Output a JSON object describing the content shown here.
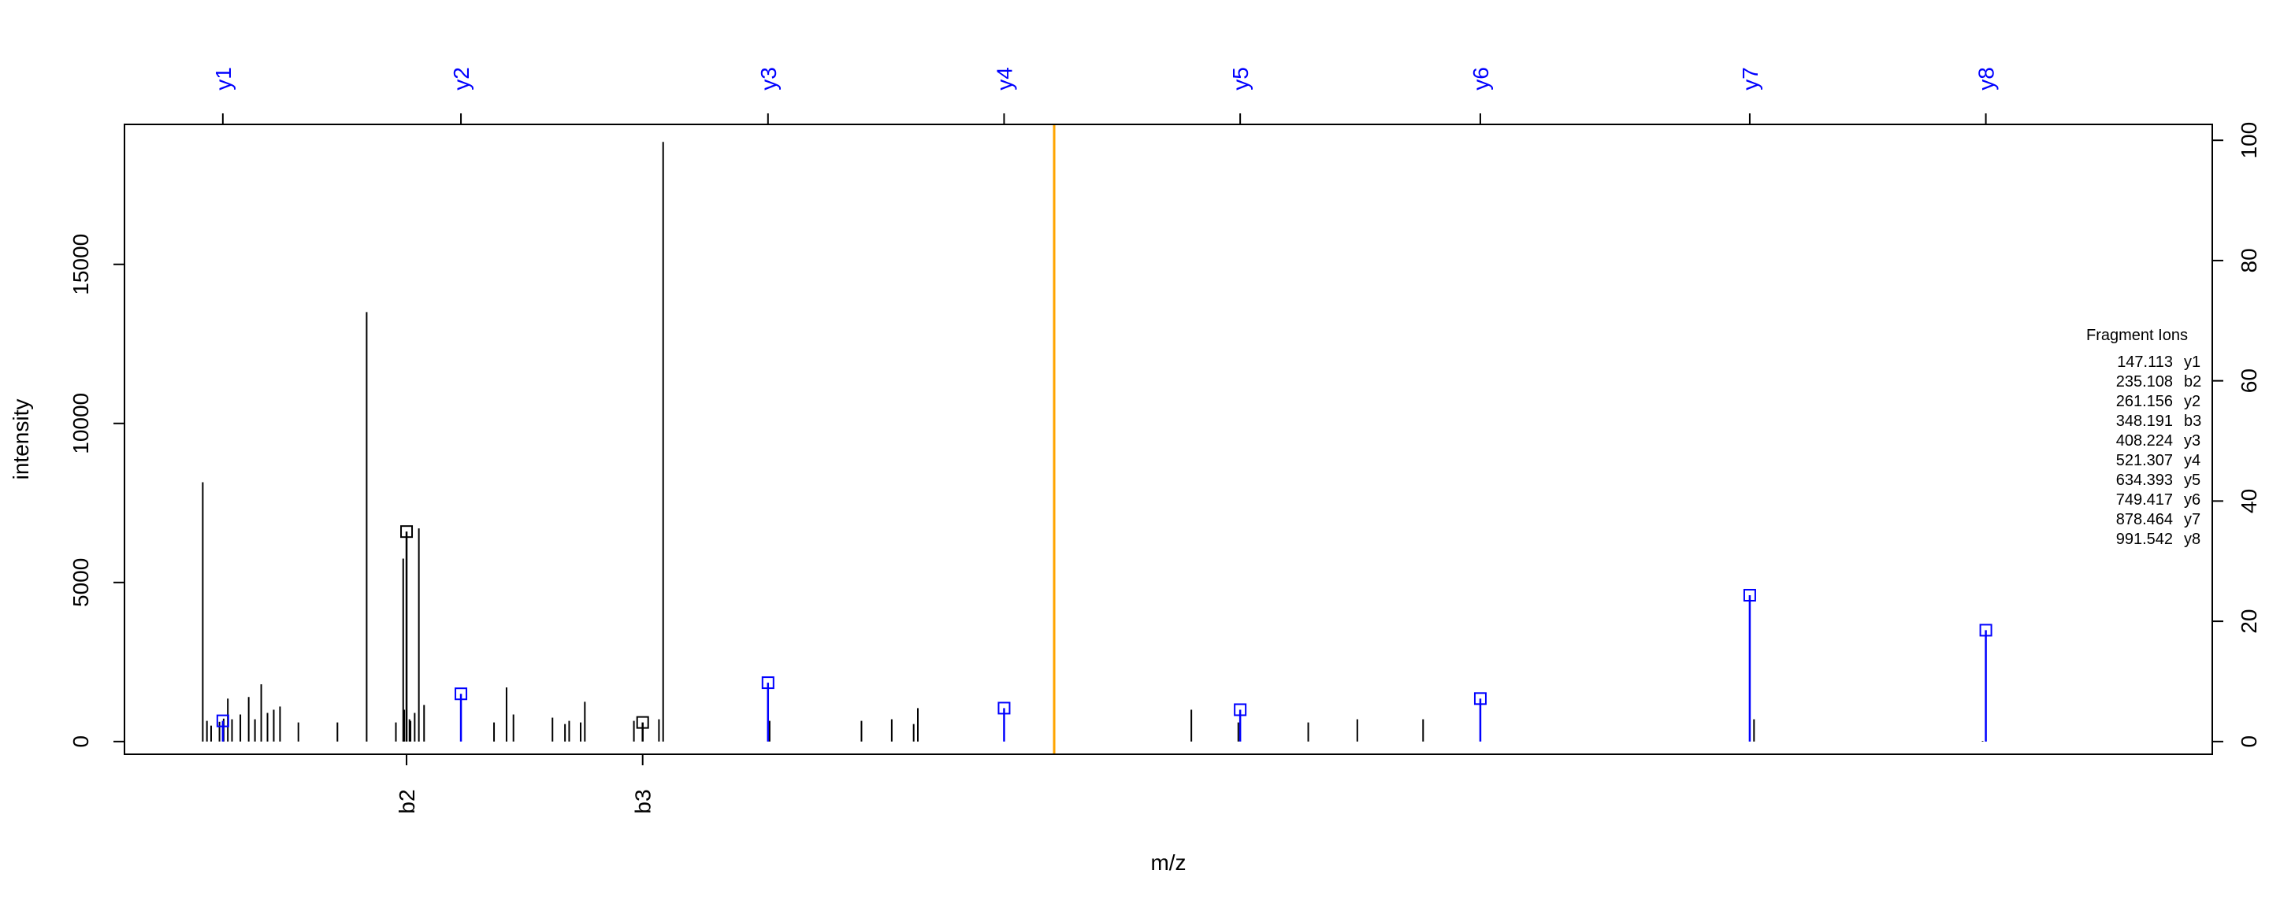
{
  "chart_data": {
    "type": "bar",
    "title": "",
    "xlabel": "m/z",
    "ylabel": "intensity",
    "xlim": [
      100,
      1100
    ],
    "ylim": [
      -400,
      19400
    ],
    "y_ticks": [
      0,
      5000,
      10000,
      15000
    ],
    "y_right_ticks": [
      0,
      20,
      40,
      60,
      80,
      100
    ],
    "y_right_max_intensity": 18900,
    "grid": false,
    "precursor_mz": 545.3,
    "colors": {
      "precursor": "#ffa500",
      "y_ions": "#0000ff",
      "b_ions": "#000000",
      "peaks": "#000000"
    },
    "peaks": {
      "mz": [
        137.5,
        139.5,
        141.5,
        145.5,
        147.5,
        149.5,
        151.5,
        155.5,
        159.5,
        162.5,
        165.5,
        168.5,
        171.5,
        174.5,
        183.3,
        202,
        216,
        230,
        233.5,
        237,
        234,
        236.5,
        239,
        241,
        243.5,
        277,
        283,
        286.3,
        305,
        311,
        313,
        318.5,
        320.5,
        344,
        356,
        358,
        409,
        453,
        467.5,
        478,
        480,
        545.3,
        611,
        633.5,
        667,
        690.5,
        722,
        880.5,
        990
      ],
      "intensity": [
        8150,
        650,
        500,
        620,
        720,
        1350,
        700,
        850,
        1400,
        700,
        1800,
        900,
        1000,
        1100,
        600,
        600,
        13500,
        600,
        5750,
        650,
        1000,
        700,
        900,
        6700,
        1150,
        600,
        1700,
        850,
        750,
        550,
        650,
        600,
        1250,
        650,
        700,
        18850,
        650,
        650,
        700,
        550,
        1050,
        7500,
        1000,
        600,
        600,
        700,
        700,
        700,
        20
      ]
    },
    "y_ions": [
      {
        "label": "y1",
        "mz": 147.113,
        "intensity": 650
      },
      {
        "label": "y2",
        "mz": 261.156,
        "intensity": 1500
      },
      {
        "label": "y3",
        "mz": 408.224,
        "intensity": 1850
      },
      {
        "label": "y4",
        "mz": 521.307,
        "intensity": 1050
      },
      {
        "label": "y5",
        "mz": 634.393,
        "intensity": 1000
      },
      {
        "label": "y6",
        "mz": 749.417,
        "intensity": 1350
      },
      {
        "label": "y7",
        "mz": 878.464,
        "intensity": 4600
      },
      {
        "label": "y8",
        "mz": 991.542,
        "intensity": 3500
      }
    ],
    "b_ions": [
      {
        "label": "b2",
        "mz": 235.108,
        "intensity": 6600
      },
      {
        "label": "b3",
        "mz": 348.191,
        "intensity": 600
      }
    ],
    "legend": {
      "title": "Fragment Ions",
      "position": "right",
      "entries": [
        {
          "mz": "147.113",
          "ion": "y1"
        },
        {
          "mz": "235.108",
          "ion": "b2"
        },
        {
          "mz": "261.156",
          "ion": "y2"
        },
        {
          "mz": "348.191",
          "ion": "b3"
        },
        {
          "mz": "408.224",
          "ion": "y3"
        },
        {
          "mz": "521.307",
          "ion": "y4"
        },
        {
          "mz": "634.393",
          "ion": "y5"
        },
        {
          "mz": "749.417",
          "ion": "y6"
        },
        {
          "mz": "878.464",
          "ion": "y7"
        },
        {
          "mz": "991.542",
          "ion": "y8"
        }
      ]
    }
  }
}
